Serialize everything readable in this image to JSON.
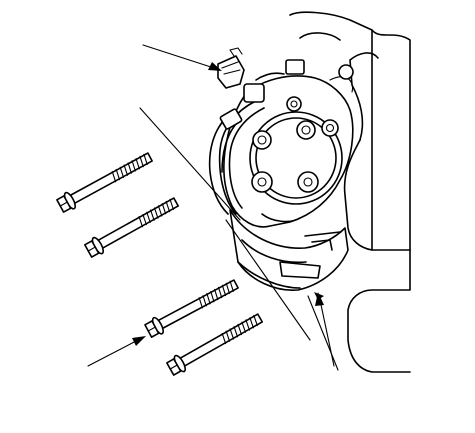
{
  "figure": {
    "subject": "compressor-mounting-bolts-exploded-view",
    "background_color": "#ffffff",
    "line_color": "#000000",
    "bolt_count": 4,
    "callout_arrow_count": 3,
    "icons": [
      "bolt-icon",
      "connector-icon",
      "compressor-icon",
      "arrow-icon"
    ]
  }
}
